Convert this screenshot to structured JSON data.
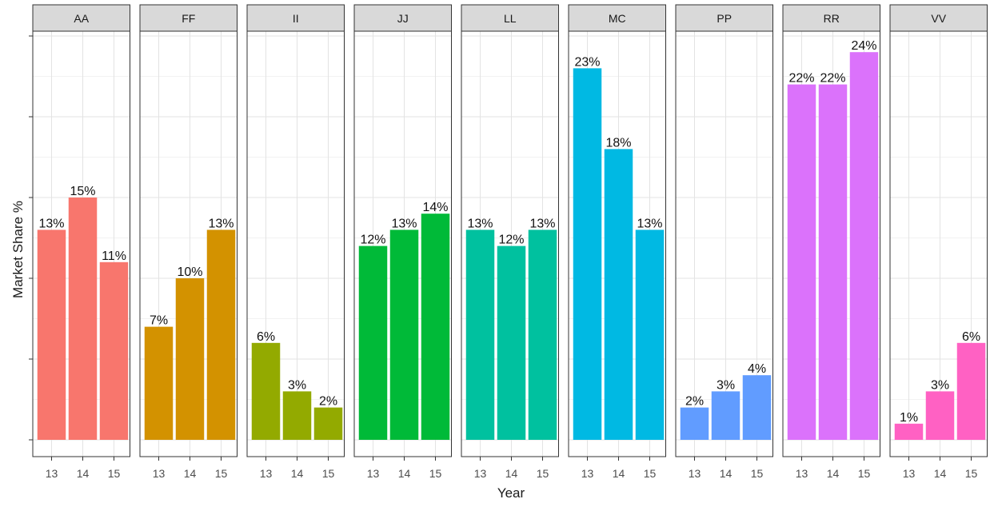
{
  "chart_data": {
    "type": "bar",
    "xlabel": "Year",
    "ylabel": "Market Share %",
    "categories": [
      "13",
      "14",
      "15"
    ],
    "ylim": [
      0,
      25
    ],
    "grid": true,
    "panels": [
      {
        "name": "AA",
        "color": "#F8766D",
        "values": [
          13,
          15,
          11
        ],
        "labels": [
          "13%",
          "15%",
          "11%"
        ]
      },
      {
        "name": "FF",
        "color": "#D39200",
        "values": [
          7,
          10,
          13
        ],
        "labels": [
          "7%",
          "10%",
          "13%"
        ]
      },
      {
        "name": "II",
        "color": "#93AA00",
        "values": [
          6,
          3,
          2
        ],
        "labels": [
          "6%",
          "3%",
          "2%"
        ]
      },
      {
        "name": "JJ",
        "color": "#00BA38",
        "values": [
          12,
          13,
          14
        ],
        "labels": [
          "12%",
          "13%",
          "14%"
        ]
      },
      {
        "name": "LL",
        "color": "#00C19F",
        "values": [
          13,
          12,
          13
        ],
        "labels": [
          "13%",
          "12%",
          "13%"
        ]
      },
      {
        "name": "MC",
        "color": "#00B9E3",
        "values": [
          23,
          18,
          13
        ],
        "labels": [
          "23%",
          "18%",
          "13%"
        ]
      },
      {
        "name": "PP",
        "color": "#619CFF",
        "values": [
          2,
          3,
          4
        ],
        "labels": [
          "2%",
          "3%",
          "4%"
        ]
      },
      {
        "name": "RR",
        "color": "#DB72FB",
        "values": [
          22,
          22,
          24
        ],
        "labels": [
          "22%",
          "22%",
          "24%"
        ]
      },
      {
        "name": "VV",
        "color": "#FF61C3",
        "values": [
          1,
          3,
          6
        ],
        "labels": [
          "1%",
          "3%",
          "6%"
        ]
      }
    ]
  }
}
